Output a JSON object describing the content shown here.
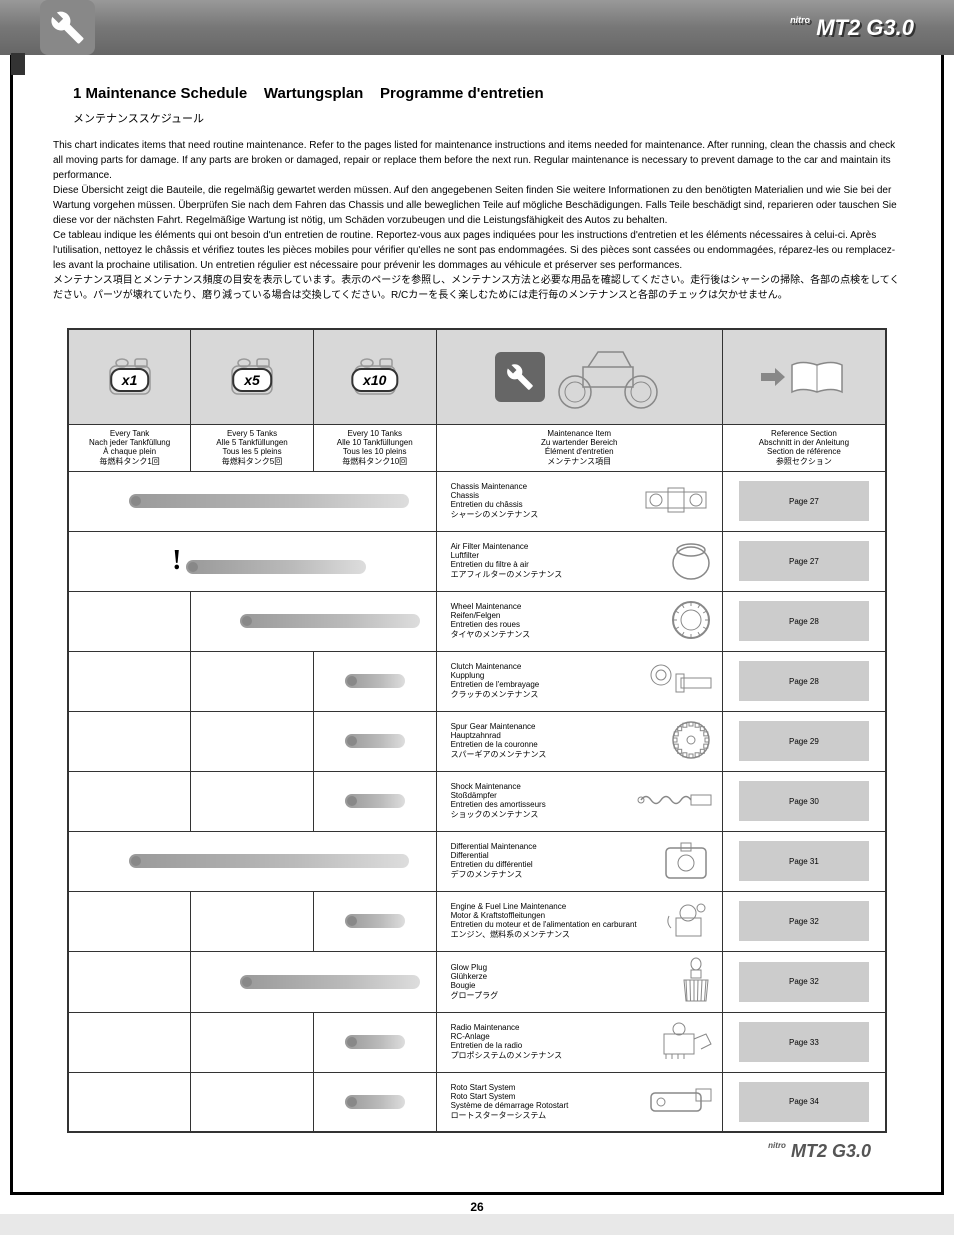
{
  "header": {
    "logo_text": "MT2 G3.0",
    "logo_prefix": "nitro"
  },
  "section": {
    "number": "1",
    "title_en": "Maintenance Schedule",
    "title_de": "Wartungsplan",
    "title_fr": "Programme d'entretien",
    "title_jp": "メンテナンススケジュール"
  },
  "intro": {
    "en": "This chart indicates items that need routine maintenance. Refer to the pages listed for maintenance instructions and items needed for maintenance. After running, clean the chassis and check all moving parts for damage. If any parts are broken or damaged, repair or replace them before the next run. Regular maintenance is necessary to prevent damage to the car and maintain its performance.",
    "de": "Diese Übersicht zeigt die Bauteile, die regelmäßig gewartet werden müssen. Auf den angegebenen Seiten finden Sie weitere Informationen zu den benötigten Materialien und wie Sie bei der Wartung vorgehen müssen. Überprüfen Sie nach dem Fahren das Chassis und alle beweglichen Teile auf mögliche Beschädigungen. Falls Teile beschädigt sind, reparieren oder tauschen Sie diese vor der nächsten Fahrt. Regelmäßige Wartung ist nötig, um Schäden vorzubeugen und die Leistungsfähigkeit des Autos zu behalten.",
    "fr": "Ce tableau indique les éléments qui ont besoin d'un entretien de routine. Reportez-vous aux pages indiquées pour les instructions d'entretien et les éléments nécessaires à celui-ci. Après l'utilisation, nettoyez le châssis et vérifiez toutes les pièces mobiles pour vérifier qu'elles ne sont pas endommagées. Si des pièces sont cassées ou endommagées, réparez-les ou remplacez-les avant la prochaine utilisation. Un entretien régulier est nécessaire pour prévenir les dommages au véhicule et préserver ses performances.",
    "jp": "メンテナンス項目とメンテナンス頻度の目安を表示しています。表示のページを参照し、メンテナンス方法と必要な用品を確認してください。走行後はシャーシの掃除、各部の点検をしてください。パーツが壊れていたり、磨り減っている場合は交換してください。R/Cカーを長く楽しむためには走行毎のメンテナンスと各部のチェックは欠かせません。"
  },
  "table_headers": {
    "x1": "x1",
    "x5": "x5",
    "x10": "x10",
    "x1_label_en": "Every Tank",
    "x1_label_de": "Nach jeder Tankfüllung",
    "x1_label_fr": "À chaque plein",
    "x1_label_jp": "毎燃料タンク1回",
    "x5_label_en": "Every 5 Tanks",
    "x5_label_de": "Alle 5 Tankfüllungen",
    "x5_label_fr": "Tous les 5 pleins",
    "x5_label_jp": "毎燃料タンク5回",
    "x10_label_en": "Every 10 Tanks",
    "x10_label_de": "Alle 10 Tankfüllungen",
    "x10_label_fr": "Tous les 10 pleins",
    "x10_label_jp": "毎燃料タンク10回",
    "item_label_en": "Maintenance Item",
    "item_label_de": "Zu wartender Bereich",
    "item_label_fr": "Élément d'entretien",
    "item_label_jp": "メンテナンス項目",
    "ref_label_en": "Reference Section",
    "ref_label_de": "Abschnitt in der Anleitung",
    "ref_label_fr": "Section de référence",
    "ref_label_jp": "参照セクション"
  },
  "rows": [
    {
      "span": 3,
      "pill": "long",
      "item_en": "Chassis Maintenance",
      "item_de": "Chassis",
      "item_fr": "Entretien du châssis",
      "item_jp": "シャーシのメンテナンス",
      "ref": "Page 27"
    },
    {
      "span": 3,
      "pill": "med",
      "excl": true,
      "item_en": "Air Filter Maintenance",
      "item_de": "Luftfilter",
      "item_fr": "Entretien du filtre à air",
      "item_jp": "エアフィルターのメンテナンス",
      "ref": "Page 27"
    },
    {
      "span": 2,
      "empty_first": true,
      "pill": "med",
      "item_en": "Wheel Maintenance",
      "item_de": "Reifen/Felgen",
      "item_fr": "Entretien des roues",
      "item_jp": "タイヤのメンテナンス",
      "ref": "Page 28"
    },
    {
      "span": 1,
      "empty_cols": 2,
      "pill": "short",
      "item_en": "Clutch Maintenance",
      "item_de": "Kupplung",
      "item_fr": "Entretien de l'embrayage",
      "item_jp": "クラッチのメンテナンス",
      "ref": "Page 28"
    },
    {
      "span": 1,
      "empty_cols": 2,
      "pill": "short",
      "item_en": "Spur Gear Maintenance",
      "item_de": "Hauptzahnrad",
      "item_fr": "Entretien de la couronne",
      "item_jp": "スパーギアのメンテナンス",
      "ref": "Page 29"
    },
    {
      "span": 1,
      "empty_cols": 2,
      "pill": "short",
      "item_en": "Shock Maintenance",
      "item_de": "Stoßdämpfer",
      "item_fr": "Entretien des amortisseurs",
      "item_jp": "ショックのメンテナンス",
      "ref": "Page 30"
    },
    {
      "span": 3,
      "pill": "long",
      "item_en": "Differential Maintenance",
      "item_de": "Differential",
      "item_fr": "Entretien du différentiel",
      "item_jp": "デフのメンテナンス",
      "ref": "Page 31"
    },
    {
      "span": 1,
      "empty_cols": 2,
      "pill": "short",
      "item_en": "Engine & Fuel Line Maintenance",
      "item_de": "Motor & Kraftstoffleitungen",
      "item_fr": "Entretien du moteur et de l'alimentation en carburant",
      "item_jp": "エンジン、燃料系のメンテナンス",
      "ref": "Page 32"
    },
    {
      "span": 2,
      "empty_first": true,
      "pill": "med",
      "item_en": "Glow Plug",
      "item_de": "Glühkerze",
      "item_fr": "Bougie",
      "item_jp": "グロープラグ",
      "ref": "Page 32"
    },
    {
      "span": 1,
      "empty_cols": 2,
      "pill": "short",
      "item_en": "Radio Maintenance",
      "item_de": "RC-Anlage",
      "item_fr": "Entretien de la radio",
      "item_jp": "プロポシステムのメンテナンス",
      "ref": "Page 33"
    },
    {
      "span": 1,
      "empty_cols": 2,
      "pill": "short",
      "item_en": "Roto Start System",
      "item_de": "Roto Start System",
      "item_fr": "Système de démarrage Rotostart",
      "item_jp": "ロートスターターシステム",
      "ref": "Page 34"
    }
  ],
  "footer": {
    "logo": "MT2 G3.0",
    "page": "26"
  },
  "colors": {
    "header_bg": "#888888",
    "cell_gray": "#d8d8d8",
    "ref_box": "#cccccc",
    "pill_start": "#999999",
    "pill_end": "#dddddd"
  }
}
